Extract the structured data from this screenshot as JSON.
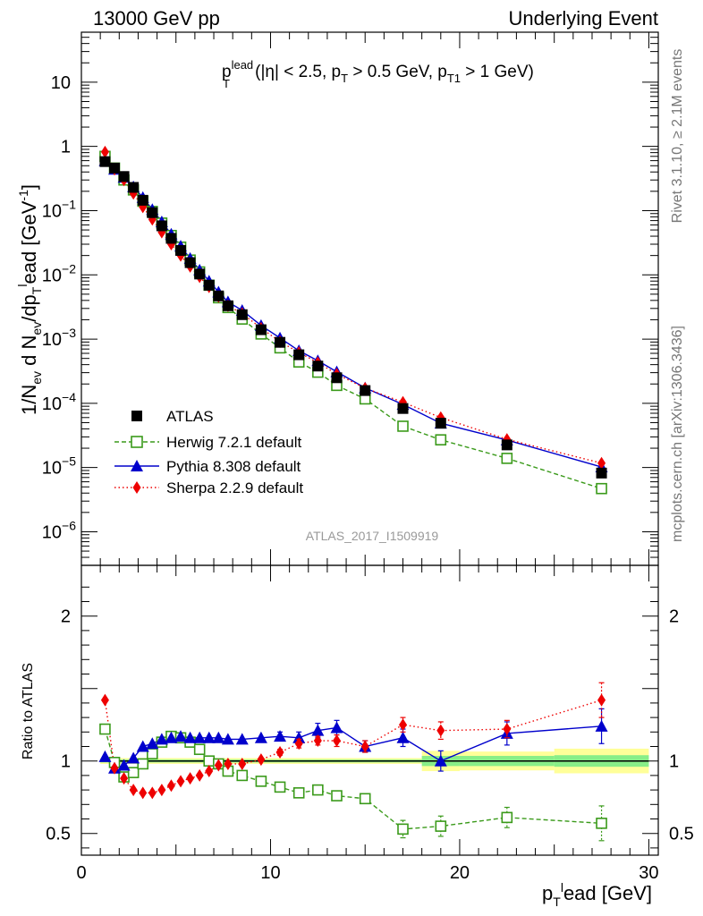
{
  "header": {
    "left": "13000 GeV pp",
    "right": "Underlying Event"
  },
  "side_labels": {
    "rivet": "Rivet 3.1.10, ≥ 2.1M events",
    "mcplots": "mcplots.cern.ch [arXiv:1306.3436]"
  },
  "watermark": "ATLAS_2017_I1509919",
  "colors": {
    "atlas": "#000000",
    "herwig": "#3a9a1a",
    "pythia": "#0000cc",
    "sherpa": "#ee0000",
    "band_inner": "#88ee88",
    "band_outer": "#ffff99"
  },
  "chart_data": [
    {
      "type": "scatter",
      "panel": "main",
      "title_parts": {
        "p": "p",
        "T": "T",
        "lead": "lead",
        "cuts": "(|η| < 2.5, p",
        "cut_T": "T",
        "cuts2": " > 0.5 GeV, p",
        "cut_T1": "T1",
        "cuts3": " > 1 GeV)"
      },
      "ylabel_parts": {
        "a": "1/N",
        "ev": "ev",
        "b": " d N",
        "ev2": "ev",
        "c": "/dp",
        "T": "T",
        "l": "l",
        "d": "ead [GeV",
        "m1": "-1",
        "e": "]"
      },
      "yscale": "log",
      "ylim": [
        3e-07,
        60
      ],
      "xlim": [
        0,
        30.5
      ],
      "yticks": [
        {
          "v": 10,
          "label": "10",
          "exp": ""
        },
        {
          "v": 1,
          "label": "1",
          "exp": ""
        },
        {
          "v": 0.1,
          "label": "10",
          "exp": "−1"
        },
        {
          "v": 0.01,
          "label": "10",
          "exp": "−2"
        },
        {
          "v": 0.001,
          "label": "10",
          "exp": "−3"
        },
        {
          "v": 0.0001,
          "label": "10",
          "exp": "−4"
        },
        {
          "v": 1e-05,
          "label": "10",
          "exp": "−5"
        },
        {
          "v": 1e-06,
          "label": "10",
          "exp": "−6"
        }
      ],
      "legend_position": "bottom-left",
      "x": [
        1.25,
        1.75,
        2.25,
        2.75,
        3.25,
        3.75,
        4.25,
        4.75,
        5.25,
        5.75,
        6.25,
        6.75,
        7.25,
        7.75,
        8.5,
        9.5,
        10.5,
        11.5,
        12.5,
        13.5,
        15.0,
        17.0,
        19.0,
        22.5,
        27.5
      ],
      "series": [
        {
          "name": "ATLAS",
          "key": "atlas",
          "marker": "square-filled",
          "values": [
            0.58,
            0.46,
            0.34,
            0.23,
            0.145,
            0.093,
            0.058,
            0.037,
            0.024,
            0.0155,
            0.0103,
            0.0069,
            0.0047,
            0.0033,
            0.0024,
            0.0014,
            0.00089,
            0.00057,
            0.00038,
            0.00025,
            0.000158,
            8.3e-05,
            4.9e-05,
            2.25e-05,
            8.2e-06
          ]
        },
        {
          "name": "Herwig 7.2.1 default",
          "key": "herwig",
          "marker": "square-open",
          "line": "dashed",
          "values": [
            0.7,
            0.46,
            0.3,
            0.21,
            0.14,
            0.097,
            0.064,
            0.041,
            0.027,
            0.017,
            0.0111,
            0.0069,
            0.0044,
            0.0031,
            0.00205,
            0.0012,
            0.00073,
            0.00044,
            0.000305,
            0.00019,
            0.000117,
            4.4e-05,
            2.7e-05,
            1.39e-05,
            4.7e-06
          ]
        },
        {
          "name": "Pythia 8.308 default",
          "key": "pythia",
          "marker": "triangle-filled",
          "line": "solid",
          "values": [
            0.6,
            0.44,
            0.33,
            0.235,
            0.16,
            0.104,
            0.067,
            0.043,
            0.028,
            0.018,
            0.0119,
            0.008,
            0.0054,
            0.0038,
            0.0028,
            0.00163,
            0.00104,
            0.00066,
            0.00046,
            0.00031,
            0.000174,
            9.6e-05,
            4.9e-05,
            2.68e-05,
            1.02e-05
          ]
        },
        {
          "name": "Sherpa 2.2.9 default",
          "key": "sherpa",
          "marker": "diamond-filled",
          "line": "dotted",
          "values": [
            0.82,
            0.44,
            0.3,
            0.185,
            0.114,
            0.073,
            0.046,
            0.03,
            0.02,
            0.0135,
            0.0093,
            0.0065,
            0.0046,
            0.0033,
            0.0025,
            0.00148,
            0.00091,
            0.00062,
            0.00043,
            0.000285,
            0.000172,
            0.000104,
            6e-05,
            2.75e-05,
            1.17e-05
          ]
        }
      ]
    },
    {
      "type": "scatter",
      "panel": "ratio",
      "ylabel": "Ratio to ATLAS",
      "xlabel_parts": {
        "p": "p",
        "T": "T",
        "l": "l",
        "rest": "ead [GeV]"
      },
      "ylim": [
        0.35,
        2.35
      ],
      "xlim": [
        0,
        30.5
      ],
      "yticks": [
        {
          "v": 0.5,
          "label": "0.5"
        },
        {
          "v": 1,
          "label": "1"
        },
        {
          "v": 2,
          "label": "2"
        }
      ],
      "xticks": [
        {
          "v": 0,
          "label": "0"
        },
        {
          "v": 10,
          "label": "10"
        },
        {
          "v": 20,
          "label": "20"
        },
        {
          "v": 30,
          "label": "30"
        }
      ],
      "bands": [
        {
          "x0": 1.0,
          "x1": 18.0,
          "inner": 0.01,
          "outer": 0.02
        },
        {
          "x0": 18.0,
          "x1": 20.0,
          "inner": 0.035,
          "outer": 0.07
        },
        {
          "x0": 20.0,
          "x1": 25.0,
          "inner": 0.035,
          "outer": 0.065
        },
        {
          "x0": 25.0,
          "x1": 30.0,
          "inner": 0.04,
          "outer": 0.085
        }
      ],
      "x": [
        1.25,
        1.75,
        2.25,
        2.75,
        3.25,
        3.75,
        4.25,
        4.75,
        5.25,
        5.75,
        6.25,
        6.75,
        7.25,
        7.75,
        8.5,
        9.5,
        10.5,
        11.5,
        12.5,
        13.5,
        15.0,
        17.0,
        19.0,
        22.5,
        27.5
      ],
      "series": [
        {
          "name": "Herwig 7.2.1 default",
          "key": "herwig",
          "marker": "square-open",
          "line": "dashed",
          "values": [
            1.22,
            0.99,
            0.89,
            0.92,
            0.98,
            1.05,
            1.13,
            1.17,
            1.16,
            1.13,
            1.08,
            1.0,
            0.98,
            0.93,
            0.9,
            0.86,
            0.82,
            0.78,
            0.8,
            0.76,
            0.74,
            0.53,
            0.55,
            0.61,
            0.57
          ],
          "errors": [
            0,
            0,
            0,
            0,
            0,
            0,
            0,
            0,
            0,
            0,
            0,
            0,
            0,
            0,
            0,
            0,
            0,
            0.02,
            0.03,
            0.03,
            0.03,
            0.06,
            0.07,
            0.07,
            0.12
          ]
        },
        {
          "name": "Pythia 8.308 default",
          "key": "pythia",
          "marker": "triangle-filled",
          "line": "solid",
          "values": [
            1.03,
            0.95,
            0.97,
            1.02,
            1.1,
            1.12,
            1.15,
            1.16,
            1.17,
            1.16,
            1.16,
            1.16,
            1.16,
            1.15,
            1.15,
            1.16,
            1.17,
            1.16,
            1.21,
            1.23,
            1.1,
            1.16,
            1.0,
            1.19,
            1.24
          ],
          "errors": [
            0,
            0,
            0,
            0,
            0,
            0,
            0,
            0,
            0,
            0,
            0,
            0,
            0,
            0,
            0,
            0,
            0.03,
            0.04,
            0.05,
            0.05,
            0.04,
            0.06,
            0.07,
            0.08,
            0.12
          ]
        },
        {
          "name": "Sherpa 2.2.9 default",
          "key": "sherpa",
          "marker": "diamond-filled",
          "line": "dotted",
          "values": [
            1.42,
            0.95,
            0.88,
            0.8,
            0.78,
            0.78,
            0.8,
            0.83,
            0.86,
            0.88,
            0.9,
            0.93,
            0.97,
            0.98,
            0.98,
            1.01,
            1.06,
            1.12,
            1.14,
            1.14,
            1.1,
            1.25,
            1.21,
            1.22,
            1.42
          ],
          "errors": [
            0,
            0,
            0,
            0,
            0,
            0,
            0,
            0,
            0,
            0,
            0,
            0,
            0,
            0,
            0,
            0,
            0.02,
            0.03,
            0.03,
            0.04,
            0.04,
            0.05,
            0.06,
            0.06,
            0.12
          ]
        }
      ]
    }
  ]
}
